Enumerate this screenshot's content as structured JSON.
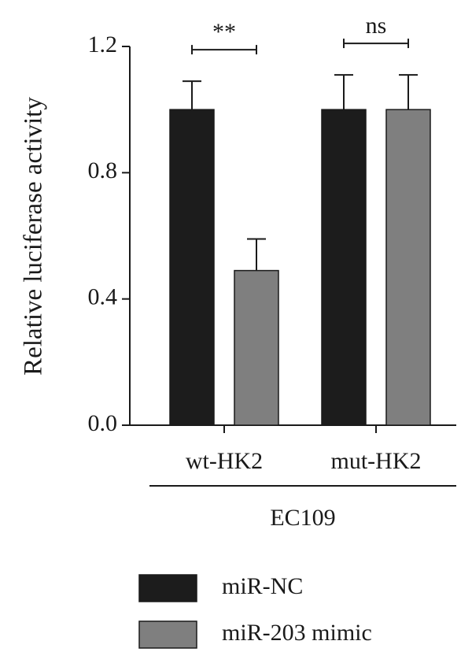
{
  "chart_data": {
    "type": "bar",
    "y_label": "Relative luciferase activity",
    "categories": [
      "wt-HK2",
      "mut-HK2"
    ],
    "group_label": "EC109",
    "series": [
      {
        "name": "miR-NC",
        "color": "#1c1c1c",
        "values": [
          1.0,
          1.0
        ],
        "errors": [
          0.09,
          0.11
        ]
      },
      {
        "name": "miR-203 mimic",
        "color": "#7f7f7f",
        "values": [
          0.49,
          1.0
        ],
        "errors": [
          0.1,
          0.11
        ]
      }
    ],
    "annotations": [
      "**",
      "ns"
    ],
    "ylim": [
      0,
      1.2
    ],
    "yticks": [
      {
        "value": 0,
        "label": "0.0"
      },
      0.4,
      0.8,
      1.2
    ],
    "legend": "bottom"
  }
}
